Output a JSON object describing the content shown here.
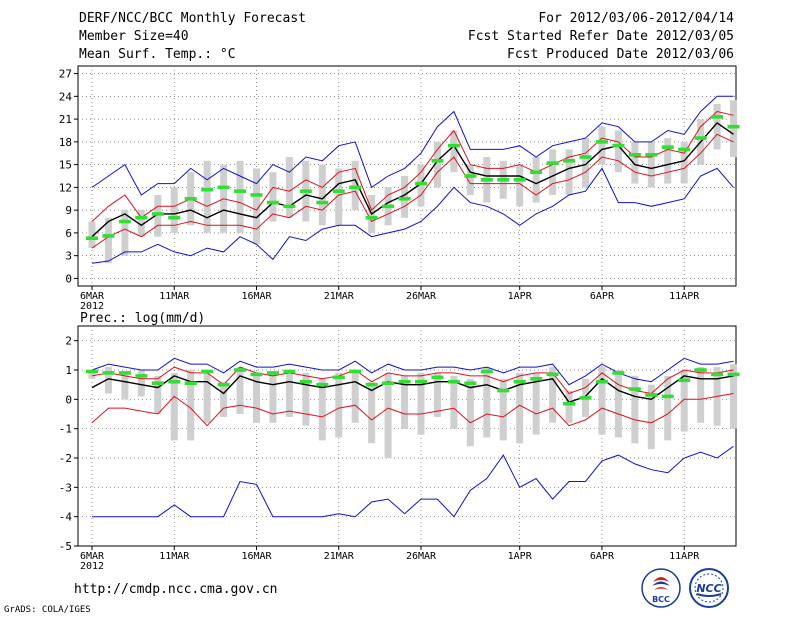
{
  "header": {
    "title": "DERF/NCC/BCC Monthly Forecast",
    "member_size": "Member Size=40",
    "variable_temp": "Mean Surf. Temp.: °C",
    "period": "For 2012/03/06-2012/04/14",
    "fcst_started": "Fcst Started Refer Date 2012/03/05",
    "fcst_produced": "Fcst Produced Date 2012/03/06"
  },
  "footer": {
    "url": "http://cmdp.ncc.cma.gov.cn",
    "grads": "GrADS: COLA/IGES",
    "logo_bcc": "BCC",
    "logo_ncc": "NCC"
  },
  "colors": {
    "max_min": "#1010d0",
    "spread": "#e01020",
    "mean": "#000000",
    "box": "#cfcfcf",
    "median": "#33dd33"
  },
  "chart_data": [
    {
      "type": "line",
      "name": "temperature",
      "title": "Mean Surf. Temp.: °C",
      "xlabel": "",
      "ylabel": "°C",
      "ylim": [
        -1,
        28
      ],
      "yticks": [
        0,
        3,
        6,
        9,
        12,
        15,
        18,
        21,
        24,
        27
      ],
      "x_ticks": [
        {
          "day": 0,
          "label": "6MAR",
          "sub": "2012"
        },
        {
          "day": 5,
          "label": "11MAR"
        },
        {
          "day": 10,
          "label": "16MAR"
        },
        {
          "day": 15,
          "label": "21MAR"
        },
        {
          "day": 20,
          "label": "26MAR"
        },
        {
          "day": 26,
          "label": "1APR"
        },
        {
          "day": 31,
          "label": "6APR"
        },
        {
          "day": 36,
          "label": "11APR"
        }
      ],
      "days": [
        0,
        1,
        2,
        3,
        4,
        5,
        6,
        7,
        8,
        9,
        10,
        11,
        12,
        13,
        14,
        15,
        16,
        17,
        18,
        19,
        20,
        21,
        22,
        23,
        24,
        25,
        26,
        27,
        28,
        29,
        30,
        31,
        32,
        33,
        34,
        35,
        36,
        37,
        38,
        39
      ],
      "series": [
        {
          "name": "max",
          "color": "#1010d0",
          "values": [
            12,
            13.5,
            15,
            11,
            12.5,
            12.5,
            14.5,
            13,
            14.5,
            13.5,
            12.5,
            15,
            14,
            16,
            15.5,
            17.5,
            18,
            12,
            13.5,
            14.5,
            16.5,
            20,
            22,
            17,
            17,
            17,
            17.5,
            16,
            17.5,
            18,
            18.5,
            20.5,
            20,
            18,
            18,
            19.5,
            19,
            22,
            24,
            24
          ]
        },
        {
          "name": "upper",
          "color": "#e01020",
          "values": [
            7.5,
            9.5,
            11,
            8,
            9.5,
            9.5,
            10.5,
            9.5,
            10.5,
            10,
            9,
            12,
            11.5,
            13,
            12,
            14,
            14.5,
            9,
            11,
            12,
            14,
            17,
            19.5,
            15,
            14.5,
            14.5,
            15,
            14,
            15,
            16,
            16.5,
            18.5,
            18,
            16,
            16,
            17,
            16.5,
            20,
            22,
            21.5
          ]
        },
        {
          "name": "mean",
          "color": "#000000",
          "values": [
            5.5,
            7.5,
            8.5,
            7,
            8.5,
            8.5,
            9,
            8,
            9,
            8.5,
            8,
            10,
            9.5,
            11,
            10.5,
            12.5,
            13,
            8.5,
            10,
            11,
            12.5,
            15.5,
            17.5,
            14,
            13.5,
            13.5,
            13.5,
            12.5,
            13.5,
            14.5,
            15,
            17,
            17.5,
            15,
            14.5,
            15,
            15.5,
            18,
            20.5,
            19
          ]
        },
        {
          "name": "lower",
          "color": "#e01020",
          "values": [
            4,
            5.5,
            6.5,
            5.5,
            7,
            7,
            7.5,
            7,
            7,
            7,
            6.5,
            8.5,
            8,
            9.5,
            9,
            11,
            11.5,
            7.5,
            8.5,
            9.5,
            11,
            14,
            16,
            12.5,
            12.5,
            12.5,
            12.5,
            11,
            12.5,
            13,
            14,
            16,
            15.5,
            14,
            13.5,
            14,
            14.5,
            16.5,
            19,
            18
          ]
        },
        {
          "name": "min",
          "color": "#1010d0",
          "values": [
            2,
            2.3,
            3.5,
            3.5,
            4.5,
            3.5,
            3,
            4,
            3.5,
            5.5,
            4.5,
            2.5,
            5.5,
            5,
            6.5,
            7,
            7,
            5.5,
            6,
            6.5,
            7.5,
            9.5,
            12,
            10,
            9.5,
            8.5,
            7,
            8.5,
            9.5,
            11,
            11.5,
            14.5,
            10,
            10,
            9.5,
            10,
            10.5,
            13.5,
            14.5,
            12
          ]
        }
      ],
      "boxes": [
        {
          "lo": 4,
          "hi": 7.5,
          "med": 5.3
        },
        {
          "lo": 2,
          "hi": 8,
          "med": 5.6
        },
        {
          "lo": 3,
          "hi": 9,
          "med": 7.5
        },
        {
          "lo": 5.5,
          "hi": 9,
          "med": 8
        },
        {
          "lo": 5.5,
          "hi": 11,
          "med": 8.5
        },
        {
          "lo": 6,
          "hi": 12,
          "med": 8
        },
        {
          "lo": 7,
          "hi": 14,
          "med": 10.5
        },
        {
          "lo": 6,
          "hi": 15.5,
          "med": 11.7
        },
        {
          "lo": 6,
          "hi": 15,
          "med": 12
        },
        {
          "lo": 6,
          "hi": 15.5,
          "med": 11.5
        },
        {
          "lo": 4.5,
          "hi": 14.5,
          "med": 11
        },
        {
          "lo": 7.5,
          "hi": 14,
          "med": 10
        },
        {
          "lo": 8,
          "hi": 16,
          "med": 9.5
        },
        {
          "lo": 7.5,
          "hi": 15.5,
          "med": 11.5
        },
        {
          "lo": 7,
          "hi": 15,
          "med": 10
        },
        {
          "lo": 7,
          "hi": 14.5,
          "med": 11.5
        },
        {
          "lo": 9,
          "hi": 15.5,
          "med": 12
        },
        {
          "lo": 6,
          "hi": 11,
          "med": 8
        },
        {
          "lo": 7,
          "hi": 12,
          "med": 9.5
        },
        {
          "lo": 8,
          "hi": 13.5,
          "med": 10.5
        },
        {
          "lo": 9.5,
          "hi": 15,
          "med": 12.5
        },
        {
          "lo": 12,
          "hi": 18,
          "med": 15.5
        },
        {
          "lo": 14,
          "hi": 19.5,
          "med": 17.5
        },
        {
          "lo": 11,
          "hi": 15,
          "med": 13.5
        },
        {
          "lo": 10,
          "hi": 16,
          "med": 13
        },
        {
          "lo": 10.5,
          "hi": 15.5,
          "med": 13
        },
        {
          "lo": 9.5,
          "hi": 15,
          "med": 13
        },
        {
          "lo": 10,
          "hi": 16,
          "med": 14
        },
        {
          "lo": 11,
          "hi": 17,
          "med": 15.2
        },
        {
          "lo": 11,
          "hi": 17,
          "med": 15.5
        },
        {
          "lo": 12,
          "hi": 18.5,
          "med": 16
        },
        {
          "lo": 15,
          "hi": 20,
          "med": 18
        },
        {
          "lo": 14,
          "hi": 19.5,
          "med": 17.5
        },
        {
          "lo": 12.5,
          "hi": 18,
          "med": 16.3
        },
        {
          "lo": 12,
          "hi": 18,
          "med": 16.3
        },
        {
          "lo": 12.5,
          "hi": 18.5,
          "med": 17.3
        },
        {
          "lo": 12.5,
          "hi": 18,
          "med": 17
        },
        {
          "lo": 15,
          "hi": 21,
          "med": 18.5
        },
        {
          "lo": 17,
          "hi": 23,
          "med": 21.3
        },
        {
          "lo": 16,
          "hi": 23.5,
          "med": 20
        }
      ]
    },
    {
      "type": "line",
      "name": "precipitation",
      "title": "Prec.: log(mm/d)",
      "xlabel": "",
      "ylabel": "log(mm/d)",
      "ylim": [
        -5,
        2.5
      ],
      "yticks": [
        -5,
        -4,
        -3,
        -2,
        -1,
        0,
        1,
        2
      ],
      "x_ticks": [
        {
          "day": 0,
          "label": "6MAR",
          "sub": "2012"
        },
        {
          "day": 5,
          "label": "11MAR"
        },
        {
          "day": 10,
          "label": "16MAR"
        },
        {
          "day": 15,
          "label": "21MAR"
        },
        {
          "day": 20,
          "label": "26MAR"
        },
        {
          "day": 26,
          "label": "1APR"
        },
        {
          "day": 31,
          "label": "6APR"
        },
        {
          "day": 36,
          "label": "11APR"
        }
      ],
      "days": [
        0,
        1,
        2,
        3,
        4,
        5,
        6,
        7,
        8,
        9,
        10,
        11,
        12,
        13,
        14,
        15,
        16,
        17,
        18,
        19,
        20,
        21,
        22,
        23,
        24,
        25,
        26,
        27,
        28,
        29,
        30,
        31,
        32,
        33,
        34,
        35,
        36,
        37,
        38,
        39
      ],
      "series": [
        {
          "name": "max",
          "color": "#1010d0",
          "values": [
            1,
            1.2,
            1.1,
            1,
            1,
            1.4,
            1.2,
            1.2,
            0.9,
            1.3,
            1.1,
            1.1,
            1.2,
            1.1,
            1,
            1,
            1.3,
            0.9,
            1.2,
            1,
            1,
            1.1,
            1.1,
            1,
            1.1,
            0.9,
            1.1,
            1.1,
            1.2,
            0.5,
            0.8,
            1.2,
            0.9,
            0.7,
            0.6,
            1,
            1.4,
            1.2,
            1.2,
            1.3
          ]
        },
        {
          "name": "upper",
          "color": "#e01020",
          "values": [
            0.8,
            0.9,
            0.8,
            0.7,
            0.7,
            1.1,
            0.9,
            0.9,
            0.5,
            1.1,
            0.9,
            0.8,
            0.9,
            0.8,
            0.7,
            0.8,
            1,
            0.6,
            0.9,
            0.8,
            0.8,
            0.9,
            0.9,
            0.8,
            0.8,
            0.6,
            0.8,
            0.9,
            0.9,
            0.2,
            0.4,
            0.9,
            0.5,
            0.3,
            0.2,
            0.7,
            1,
            0.9,
            0.9,
            1
          ]
        },
        {
          "name": "mean",
          "color": "#000000",
          "values": [
            0.4,
            0.7,
            0.6,
            0.5,
            0.4,
            0.8,
            0.6,
            0.6,
            0.2,
            0.8,
            0.6,
            0.5,
            0.6,
            0.5,
            0.4,
            0.5,
            0.6,
            0.3,
            0.6,
            0.5,
            0.5,
            0.6,
            0.6,
            0.4,
            0.5,
            0.3,
            0.5,
            0.6,
            0.7,
            -0.1,
            0.1,
            0.7,
            0.3,
            0.1,
            0,
            0.4,
            0.8,
            0.7,
            0.7,
            0.8
          ]
        },
        {
          "name": "lower",
          "color": "#e01020",
          "values": [
            -0.8,
            -0.3,
            -0.3,
            -0.4,
            -0.5,
            0.1,
            -0.3,
            -0.9,
            -0.3,
            -0.2,
            -0.3,
            -0.5,
            -0.4,
            -0.5,
            -0.6,
            -0.3,
            -0.2,
            -0.7,
            -0.3,
            -0.5,
            -0.5,
            -0.4,
            -0.3,
            -0.8,
            -0.5,
            -0.6,
            -0.2,
            -0.5,
            -0.3,
            -0.9,
            -0.7,
            -0.3,
            -0.5,
            -0.7,
            -0.8,
            -0.5,
            0,
            0,
            0.1,
            0.2
          ]
        },
        {
          "name": "min",
          "color": "#1010d0",
          "values": [
            -4,
            -4,
            -4,
            -4,
            -4,
            -3.6,
            -4,
            -4,
            -4,
            -2.8,
            -2.9,
            -4,
            -4,
            -4,
            -4,
            -3.9,
            -4,
            -3.5,
            -3.4,
            -3.9,
            -3.4,
            -3.4,
            -4,
            -3.1,
            -2.7,
            -1.9,
            -3,
            -2.7,
            -3.4,
            -2.8,
            -2.8,
            -2.1,
            -1.9,
            -2.2,
            -2.4,
            -2.5,
            -2,
            -1.8,
            -2,
            -1.6
          ]
        }
      ],
      "boxes": [
        {
          "lo": 0.7,
          "hi": 1,
          "med": 0.95
        },
        {
          "lo": 0.2,
          "hi": 1.1,
          "med": 0.9
        },
        {
          "lo": 0,
          "hi": 0.9,
          "med": 0.9
        },
        {
          "lo": 0.1,
          "hi": 1,
          "med": 0.8
        },
        {
          "lo": -0.5,
          "hi": 0.8,
          "med": 0.55
        },
        {
          "lo": -1.4,
          "hi": 0.9,
          "med": 0.6
        },
        {
          "lo": -1.4,
          "hi": 1,
          "med": 0.55
        },
        {
          "lo": -0.8,
          "hi": 0.9,
          "med": 0.95
        },
        {
          "lo": -0.6,
          "hi": 0.6,
          "med": 0.5
        },
        {
          "lo": -0.5,
          "hi": 1.1,
          "med": 1
        },
        {
          "lo": -0.8,
          "hi": 0.9,
          "med": 0.85
        },
        {
          "lo": -0.8,
          "hi": 0.9,
          "med": 0.9
        },
        {
          "lo": -0.6,
          "hi": 0.9,
          "med": 0.95
        },
        {
          "lo": -0.9,
          "hi": 0.9,
          "med": 0.6
        },
        {
          "lo": -1.4,
          "hi": 0.7,
          "med": 0.5
        },
        {
          "lo": -1.3,
          "hi": 0.9,
          "med": 0.75
        },
        {
          "lo": -0.8,
          "hi": 1,
          "med": 0.95
        },
        {
          "lo": -1.5,
          "hi": 0.6,
          "med": 0.5
        },
        {
          "lo": -2,
          "hi": 0.9,
          "med": 0.55
        },
        {
          "lo": -1,
          "hi": 0.8,
          "med": 0.6
        },
        {
          "lo": -1.2,
          "hi": 0.9,
          "med": 0.6
        },
        {
          "lo": -0.6,
          "hi": 0.9,
          "med": 0.75
        },
        {
          "lo": -1,
          "hi": 0.8,
          "med": 0.6
        },
        {
          "lo": -1.6,
          "hi": 0.7,
          "med": 0.55
        },
        {
          "lo": -1.3,
          "hi": 1.1,
          "med": 0.95
        },
        {
          "lo": -1.4,
          "hi": 0.7,
          "med": 0.3
        },
        {
          "lo": -1.5,
          "hi": 0.9,
          "med": 0.6
        },
        {
          "lo": -1.2,
          "hi": 0.9,
          "med": 0.7
        },
        {
          "lo": -0.8,
          "hi": 1.1,
          "med": 0.85
        },
        {
          "lo": -0.8,
          "hi": 0.3,
          "med": -0.15
        },
        {
          "lo": -0.6,
          "hi": 0.7,
          "med": 0.05
        },
        {
          "lo": -1.2,
          "hi": 1.1,
          "med": 0.6
        },
        {
          "lo": -1.3,
          "hi": 1,
          "med": 0.9
        },
        {
          "lo": -1.5,
          "hi": 0.8,
          "med": 0.35
        },
        {
          "lo": -1.7,
          "hi": 0.5,
          "med": 0.15
        },
        {
          "lo": -1.4,
          "hi": 0.8,
          "med": 0.1
        },
        {
          "lo": -1.1,
          "hi": 1,
          "med": 0.65
        },
        {
          "lo": -0.8,
          "hi": 1.1,
          "med": 1
        },
        {
          "lo": -0.9,
          "hi": 1.1,
          "med": 0.85
        },
        {
          "lo": -1,
          "hi": 1.2,
          "med": 0.85
        }
      ]
    }
  ]
}
